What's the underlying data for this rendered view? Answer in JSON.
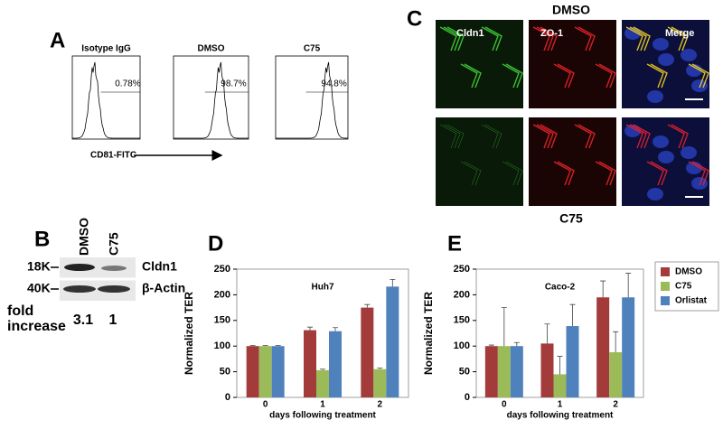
{
  "panel_a": {
    "letter": "A",
    "x_label": "CD81-FITC",
    "histograms": [
      {
        "title": "Isotype IgG",
        "percent": "0.78%"
      },
      {
        "title": "DMSO",
        "percent": "98.7%"
      },
      {
        "title": "C75",
        "percent": "94.8%"
      }
    ]
  },
  "panel_b": {
    "letter": "B",
    "lanes": [
      "DMSO",
      "C75"
    ],
    "markers": [
      "18K",
      "40K"
    ],
    "bands": [
      "Cldn1",
      "β-Actin"
    ],
    "fold_label": "fold increase",
    "fold_values": [
      3.1,
      1
    ]
  },
  "panel_c": {
    "letter": "C",
    "top_label": "DMSO",
    "bottom_label": "C75",
    "channels": [
      "Cldn1",
      "ZO-1",
      "Merge"
    ]
  },
  "chart_data": [
    {
      "type": "bar",
      "letter": "D",
      "title": "Huh7",
      "y_label": "Normalized TER",
      "x_label": "days following treatment",
      "categories": [
        "0",
        "1",
        "2"
      ],
      "ylim": [
        0,
        250
      ],
      "yticks": [
        0,
        50,
        100,
        150,
        200,
        250
      ],
      "series": [
        {
          "color": "#a33b3b",
          "values": [
            100,
            131,
            175
          ],
          "errors": [
            1,
            6,
            6
          ]
        },
        {
          "color": "#9bbb59",
          "values": [
            100,
            53,
            55
          ],
          "errors": [
            1,
            2,
            2
          ]
        },
        {
          "color": "#4f81bd",
          "values": [
            100,
            129,
            216
          ],
          "errors": [
            1,
            7,
            14
          ]
        }
      ]
    },
    {
      "type": "bar",
      "letter": "E",
      "title": "Caco-2",
      "y_label": "Normalized TER",
      "x_label": "days following treatment",
      "categories": [
        "0",
        "1",
        "2"
      ],
      "ylim": [
        0,
        250
      ],
      "yticks": [
        0,
        50,
        100,
        150,
        200,
        250
      ],
      "legend": "right",
      "series": [
        {
          "name": "DMSO",
          "color": "#a33b3b",
          "values": [
            100,
            105,
            195
          ],
          "errors": [
            2,
            38,
            32
          ]
        },
        {
          "name": "C75",
          "color": "#9bbb59",
          "values": [
            100,
            45,
            88
          ],
          "errors": [
            75,
            35,
            40
          ]
        },
        {
          "name": "Orlistat",
          "color": "#4f81bd",
          "values": [
            100,
            139,
            195
          ],
          "errors": [
            7,
            42,
            47
          ]
        }
      ]
    }
  ]
}
